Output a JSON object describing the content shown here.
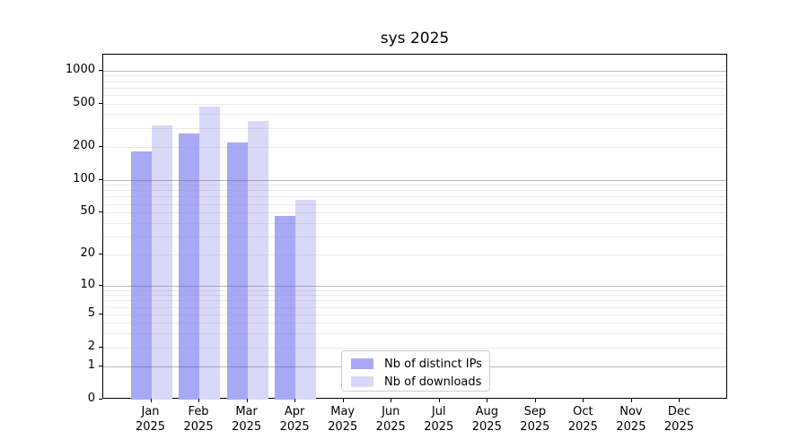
{
  "title": "sys 2025",
  "chart_data": {
    "type": "bar",
    "title": "sys 2025",
    "categories": [
      "Jan 2025",
      "Feb 2025",
      "Mar 2025",
      "Apr 2025",
      "May 2025",
      "Jun 2025",
      "Jul 2025",
      "Aug 2025",
      "Sep 2025",
      "Oct 2025",
      "Nov 2025",
      "Dec 2025"
    ],
    "series": [
      {
        "name": "Nb of distinct IPs",
        "color": "#a8a8f5",
        "values": [
          181,
          264,
          222,
          46,
          null,
          null,
          null,
          null,
          null,
          null,
          null,
          null
        ]
      },
      {
        "name": "Nb of downloads",
        "color": "#d8d8f8",
        "values": [
          315,
          466,
          346,
          65,
          null,
          null,
          null,
          null,
          null,
          null,
          null,
          null
        ]
      }
    ],
    "yscale": "log1p",
    "yticks": [
      0,
      1,
      2,
      5,
      10,
      20,
      50,
      100,
      200,
      500,
      1000
    ],
    "ylim": [
      0,
      1400
    ],
    "xlabel": "",
    "ylabel": "",
    "grid": true,
    "legend_position": "lower center"
  },
  "colors": {
    "spine": "#000000",
    "grid_major": "#c2c2c2",
    "grid_minor": "#e9e9e9"
  }
}
